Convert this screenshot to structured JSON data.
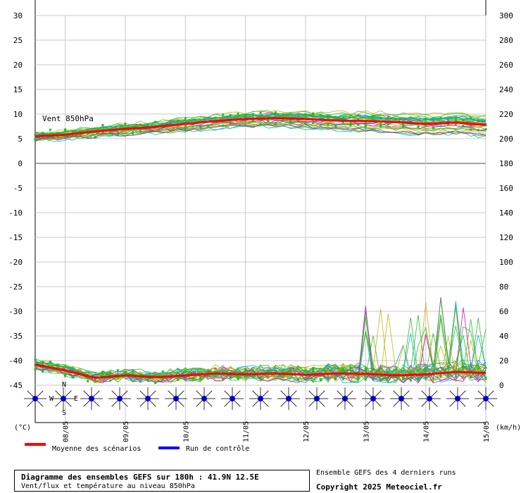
{
  "chart_data": {
    "type": "line",
    "days": [
      "08/05",
      "09/05",
      "10/05",
      "11/05",
      "12/05",
      "13/05",
      "14/05",
      "15/05"
    ],
    "top_panel": {
      "label": "Vent 850hPa",
      "left_ticks": [
        "30",
        "25",
        "20",
        "15",
        "10",
        "5",
        "0"
      ],
      "right_ticks": [
        "300",
        "280",
        "260",
        "240",
        "220",
        "200",
        "180"
      ],
      "ylim": [
        0,
        30
      ],
      "series": [
        {
          "name": "Moyenne des scénarios",
          "color": "#ff0000",
          "x": [
            0,
            12,
            24,
            36,
            48,
            60,
            72,
            84,
            96,
            108,
            120,
            132,
            144,
            156,
            168,
            180
          ],
          "values": [
            5.5,
            5.8,
            6.5,
            7.0,
            7.4,
            8.0,
            8.6,
            9.0,
            9.2,
            9.0,
            8.7,
            8.6,
            8.4,
            8.0,
            8.3,
            7.8
          ]
        }
      ]
    },
    "bottom_panel": {
      "left_ticks": [
        "0",
        "-5",
        "-10",
        "-15",
        "-20",
        "-25",
        "-30",
        "-35",
        "-40",
        "-45"
      ],
      "right_ticks": [
        "180",
        "160",
        "140",
        "120",
        "100",
        "80",
        "60",
        "40",
        "20",
        "0"
      ],
      "ylim": [
        -45,
        0
      ],
      "series": [
        {
          "name": "Moyenne des scénarios",
          "color": "#ff0000",
          "x": [
            0,
            12,
            24,
            36,
            48,
            60,
            72,
            84,
            96,
            108,
            120,
            132,
            144,
            156,
            168,
            180
          ],
          "values": [
            -40.8,
            -42.0,
            -43.5,
            -43.0,
            -43.4,
            -43.0,
            -42.6,
            -42.8,
            -42.6,
            -42.9,
            -42.6,
            -42.7,
            -43.0,
            -42.8,
            -42.3,
            -42.5
          ]
        }
      ]
    },
    "wind_barbs": {
      "count": 17,
      "compass": {
        "n": "N",
        "s": "S",
        "e": "E",
        "w": "W"
      }
    },
    "units_left": "(°C)",
    "units_right": "(km/h)",
    "legend": [
      {
        "label": "Moyenne des scénarios",
        "color": "#ff0000"
      },
      {
        "label": "Run de contrôle",
        "color": "#0000ff"
      }
    ]
  },
  "footer": {
    "title": "Diagramme des ensembles GEFS sur 180h : 41.9N 12.5E",
    "subtitle": "Vent/flux et température au niveau 850hPa",
    "right_top": "Ensemble GEFS des 4 derniers runs",
    "right_bottom": "Copyright 2025 Meteociel.fr"
  }
}
